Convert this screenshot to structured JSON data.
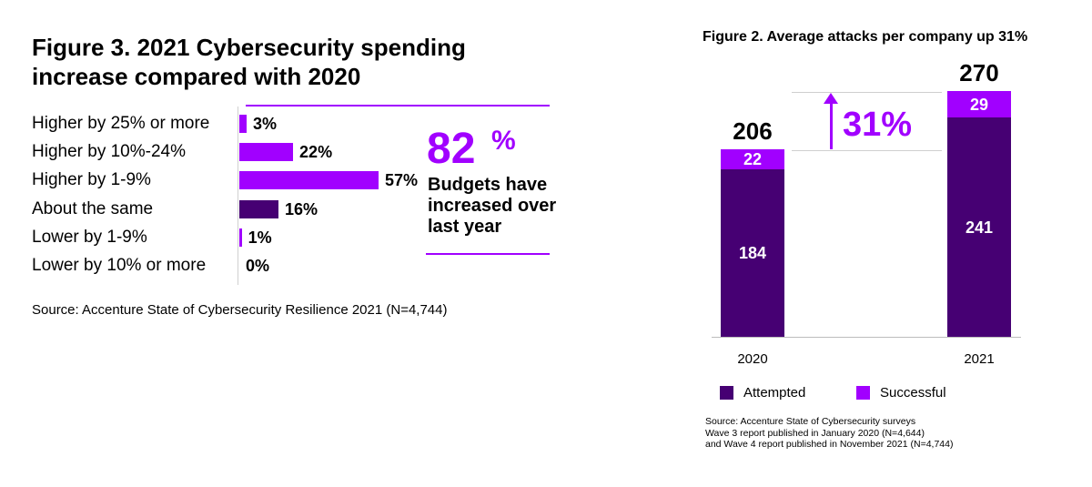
{
  "figure3": {
    "title": "Figure 3. 2021 Cybersecurity spending increase compared with 2020",
    "highlight_value": "82",
    "highlight_unit": "%",
    "highlight_text": "Budgets have increased over last year",
    "source": "Source: Accenture State of Cybersecurity Resilience 2021 (N=4,744)"
  },
  "figure2": {
    "title": "Figure 2. Average attacks per company up 31%",
    "increase_label": "31%",
    "source_lines": [
      "Source: Accenture State of Cybersecurity surveys",
      "Wave 3 report published in January 2020 (N=4,644)",
      "and Wave 4 report published in November 2021 (N=4,744)"
    ]
  },
  "chart_data": [
    {
      "type": "bar",
      "orientation": "horizontal",
      "title": "Figure 3. 2021 Cybersecurity spending increase compared with 2020",
      "categories": [
        "Higher by 25% or more",
        "Higher by 10%-24%",
        "Higher by 1-9%",
        "About the same",
        "Lower by 1-9%",
        "Lower by 10% or more"
      ],
      "values": [
        3,
        22,
        57,
        16,
        1,
        0
      ],
      "value_labels": [
        "3%",
        "22%",
        "57%",
        "16%",
        "1%",
        "0%"
      ],
      "colors": [
        "#a100ff",
        "#a100ff",
        "#a100ff",
        "#460073",
        "#a100ff",
        "#a100ff"
      ],
      "xlim": [
        0,
        57
      ],
      "grid": false
    },
    {
      "type": "bar",
      "stacked": true,
      "title": "Figure 2. Average attacks per company up 31%",
      "categories": [
        "2020",
        "2021"
      ],
      "series": [
        {
          "name": "Attempted",
          "values": [
            184,
            241
          ],
          "color": "#460073"
        },
        {
          "name": "Successful",
          "values": [
            22,
            29
          ],
          "color": "#a100ff"
        }
      ],
      "totals": [
        206,
        270
      ],
      "ylim": [
        0,
        270
      ],
      "legend": "bottom",
      "grid": false
    }
  ]
}
